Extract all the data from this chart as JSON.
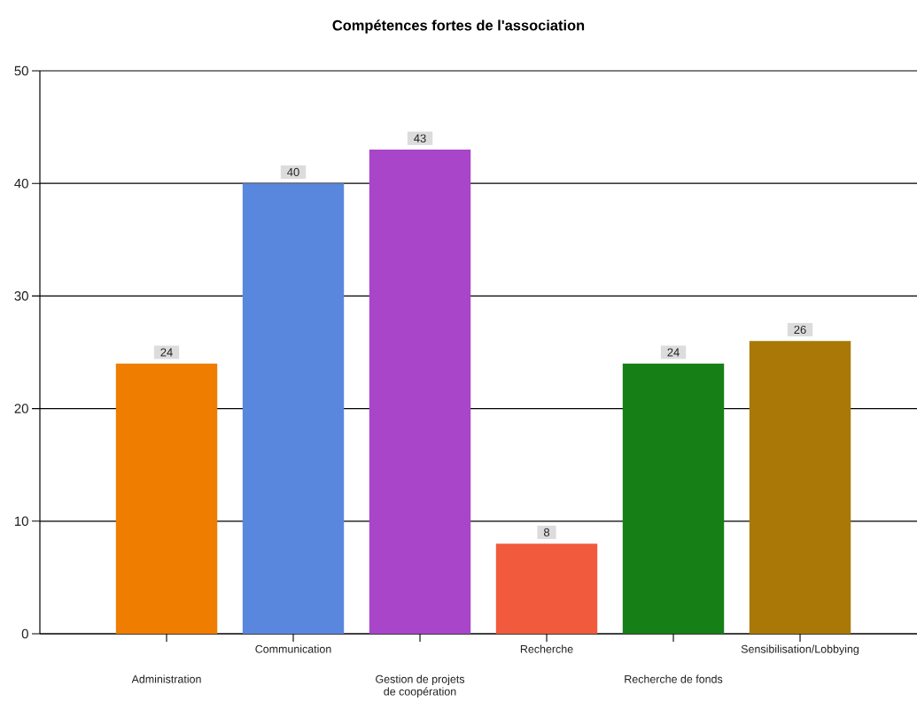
{
  "chart_data": {
    "type": "bar",
    "title": "Compétences fortes de l'association",
    "categories": [
      "Administration",
      "Communication",
      "Gestion de projets de coopération",
      "Recherche",
      "Recherche de fonds",
      "Sensibilisation/Lobbying"
    ],
    "values": [
      24,
      40,
      43,
      8,
      24,
      26
    ],
    "colors": [
      "#ee7d00",
      "#5a87de",
      "#a845c8",
      "#f25a3d",
      "#167f16",
      "#a97807"
    ],
    "ylim": [
      0,
      50
    ],
    "yticks": [
      0,
      10,
      20,
      30,
      40,
      50
    ],
    "grid": "y",
    "data_labels": true
  }
}
